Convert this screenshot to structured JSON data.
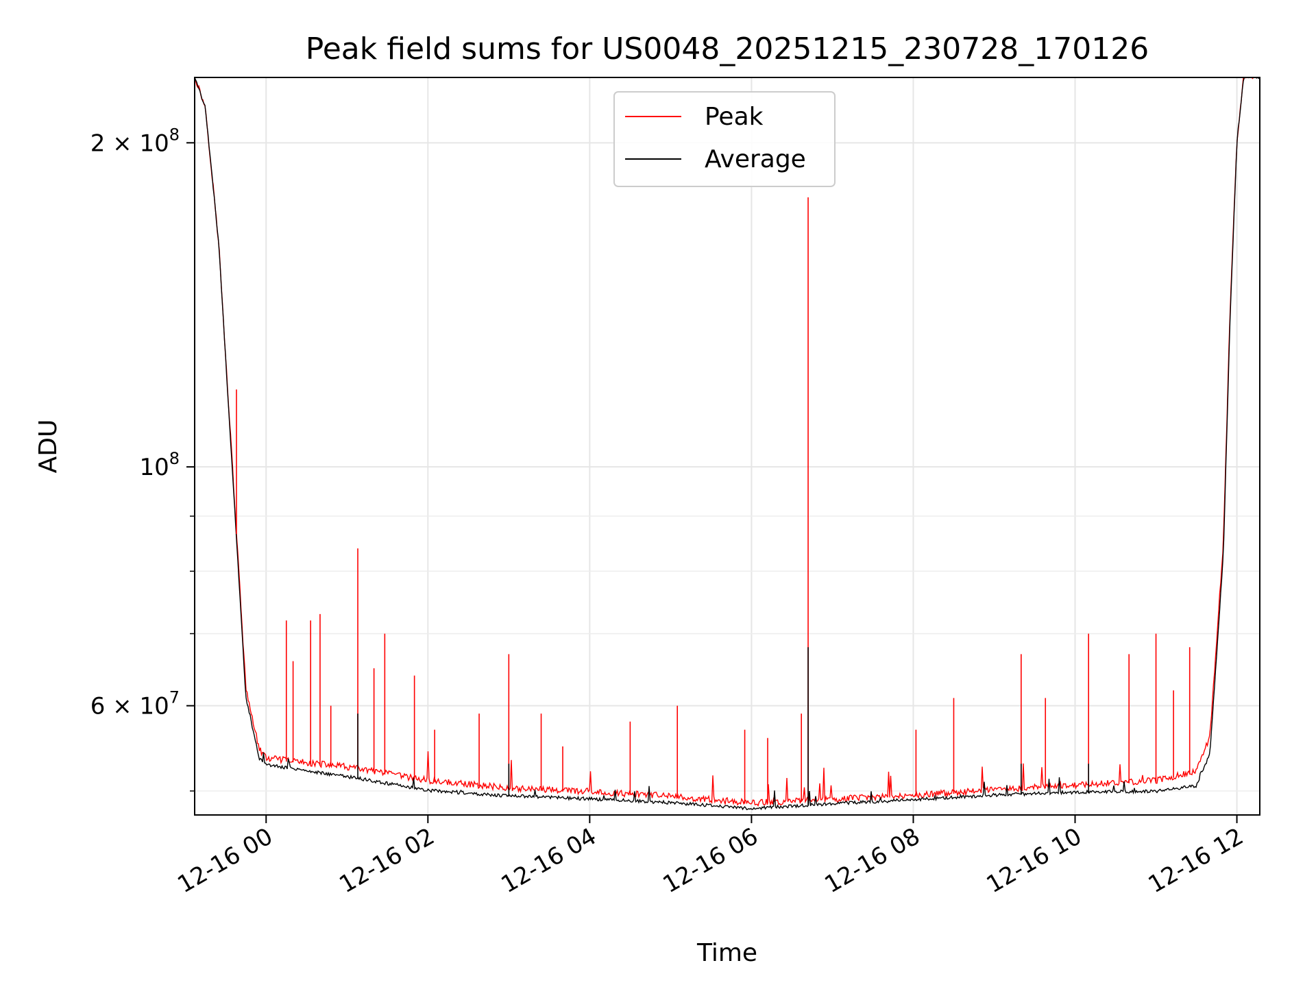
{
  "chart_data": {
    "type": "line",
    "title": "Peak field sums for US0048_20251215_230728_170126",
    "xlabel": "Time",
    "ylabel": "ADU",
    "yscale": "log",
    "xlim": [
      "2025-12-15 23:07",
      "2025-12-16 12:17"
    ],
    "ylim": [
      47500000,
      230000000
    ],
    "grid": true,
    "legend_position": "top-center",
    "x_ticks": [
      {
        "value": "2025-12-16 00:00",
        "label": "12-16 00"
      },
      {
        "value": "2025-12-16 02:00",
        "label": "12-16 02"
      },
      {
        "value": "2025-12-16 04:00",
        "label": "12-16 04"
      },
      {
        "value": "2025-12-16 06:00",
        "label": "12-16 06"
      },
      {
        "value": "2025-12-16 08:00",
        "label": "12-16 08"
      },
      {
        "value": "2025-12-16 10:00",
        "label": "12-16 10"
      },
      {
        "value": "2025-12-16 12:00",
        "label": "12-16 12"
      }
    ],
    "y_ticks": [
      {
        "value": 200000000,
        "base": "2 × 10",
        "exp": "8"
      },
      {
        "value": 100000000,
        "base": "10",
        "exp": "8"
      },
      {
        "value": 60000000,
        "base": "6 × 10",
        "exp": "7"
      }
    ],
    "y_minor_ticks": [
      50000000,
      70000000,
      80000000,
      90000000
    ],
    "series": [
      {
        "name": "Peak",
        "color": "#ff0000",
        "baseline": [
          [
            "2025-12-15 23:07",
            230000000
          ],
          [
            "2025-12-15 23:15",
            215000000
          ],
          [
            "2025-12-15 23:25",
            160000000
          ],
          [
            "2025-12-15 23:35",
            100000000
          ],
          [
            "2025-12-15 23:45",
            62000000
          ],
          [
            "2025-12-15 23:55",
            54500000
          ],
          [
            "2025-12-16 00:00",
            53500000
          ],
          [
            "2025-12-16 01:00",
            52500000
          ],
          [
            "2025-12-16 02:00",
            51000000
          ],
          [
            "2025-12-16 03:00",
            50200000
          ],
          [
            "2025-12-16 04:00",
            49800000
          ],
          [
            "2025-12-16 05:00",
            49300000
          ],
          [
            "2025-12-16 06:00",
            48600000
          ],
          [
            "2025-12-16 07:00",
            49000000
          ],
          [
            "2025-12-16 08:00",
            49400000
          ],
          [
            "2025-12-16 09:00",
            50000000
          ],
          [
            "2025-12-16 10:00",
            50500000
          ],
          [
            "2025-12-16 11:00",
            51000000
          ],
          [
            "2025-12-16 11:30",
            52000000
          ],
          [
            "2025-12-16 11:40",
            56000000
          ],
          [
            "2025-12-16 11:50",
            85000000
          ],
          [
            "2025-12-16 11:55",
            140000000
          ],
          [
            "2025-12-16 12:00",
            200000000
          ],
          [
            "2025-12-16 12:05",
            230000000
          ],
          [
            "2025-12-16 12:17",
            230000000
          ]
        ],
        "spikes": [
          [
            "2025-12-15 23:38",
            118000000
          ],
          [
            "2025-12-16 00:15",
            72000000
          ],
          [
            "2025-12-16 00:20",
            66000000
          ],
          [
            "2025-12-16 00:33",
            72000000
          ],
          [
            "2025-12-16 00:40",
            73000000
          ],
          [
            "2025-12-16 00:48",
            60000000
          ],
          [
            "2025-12-16 01:08",
            84000000
          ],
          [
            "2025-12-16 01:20",
            65000000
          ],
          [
            "2025-12-16 01:28",
            70000000
          ],
          [
            "2025-12-16 01:50",
            64000000
          ],
          [
            "2025-12-16 02:05",
            57000000
          ],
          [
            "2025-12-16 02:38",
            59000000
          ],
          [
            "2025-12-16 03:00",
            67000000
          ],
          [
            "2025-12-16 03:24",
            59000000
          ],
          [
            "2025-12-16 03:40",
            55000000
          ],
          [
            "2025-12-16 04:30",
            58000000
          ],
          [
            "2025-12-16 05:05",
            60000000
          ],
          [
            "2025-12-16 05:55",
            57000000
          ],
          [
            "2025-12-16 06:12",
            56000000
          ],
          [
            "2025-12-16 06:37",
            59000000
          ],
          [
            "2025-12-16 06:42",
            178000000
          ],
          [
            "2025-12-16 08:02",
            57000000
          ],
          [
            "2025-12-16 08:30",
            61000000
          ],
          [
            "2025-12-16 09:20",
            67000000
          ],
          [
            "2025-12-16 09:38",
            61000000
          ],
          [
            "2025-12-16 10:10",
            70000000
          ],
          [
            "2025-12-16 10:40",
            67000000
          ],
          [
            "2025-12-16 11:00",
            70000000
          ],
          [
            "2025-12-16 11:13",
            62000000
          ],
          [
            "2025-12-16 11:25",
            68000000
          ]
        ]
      },
      {
        "name": "Average",
        "color": "#000000",
        "baseline": [
          [
            "2025-12-15 23:07",
            230000000
          ],
          [
            "2025-12-15 23:15",
            215000000
          ],
          [
            "2025-12-15 23:25",
            160000000
          ],
          [
            "2025-12-15 23:35",
            99000000
          ],
          [
            "2025-12-15 23:45",
            61000000
          ],
          [
            "2025-12-15 23:55",
            53500000
          ],
          [
            "2025-12-16 00:00",
            52800000
          ],
          [
            "2025-12-16 01:00",
            51500000
          ],
          [
            "2025-12-16 02:00",
            50000000
          ],
          [
            "2025-12-16 03:00",
            49400000
          ],
          [
            "2025-12-16 04:00",
            49100000
          ],
          [
            "2025-12-16 05:00",
            48700000
          ],
          [
            "2025-12-16 06:00",
            48100000
          ],
          [
            "2025-12-16 07:00",
            48600000
          ],
          [
            "2025-12-16 08:00",
            49000000
          ],
          [
            "2025-12-16 09:00",
            49500000
          ],
          [
            "2025-12-16 10:00",
            49800000
          ],
          [
            "2025-12-16 11:00",
            49900000
          ],
          [
            "2025-12-16 11:30",
            50500000
          ],
          [
            "2025-12-16 11:40",
            54000000
          ],
          [
            "2025-12-16 11:50",
            83000000
          ],
          [
            "2025-12-16 11:55",
            138000000
          ],
          [
            "2025-12-16 12:00",
            200000000
          ],
          [
            "2025-12-16 12:05",
            230000000
          ],
          [
            "2025-12-16 12:17",
            230000000
          ]
        ],
        "spikes": [
          [
            "2025-12-16 01:08",
            59000000
          ],
          [
            "2025-12-16 03:00",
            53000000
          ],
          [
            "2025-12-16 06:42",
            68000000
          ],
          [
            "2025-12-16 09:20",
            53000000
          ],
          [
            "2025-12-16 10:10",
            53000000
          ]
        ]
      }
    ]
  }
}
